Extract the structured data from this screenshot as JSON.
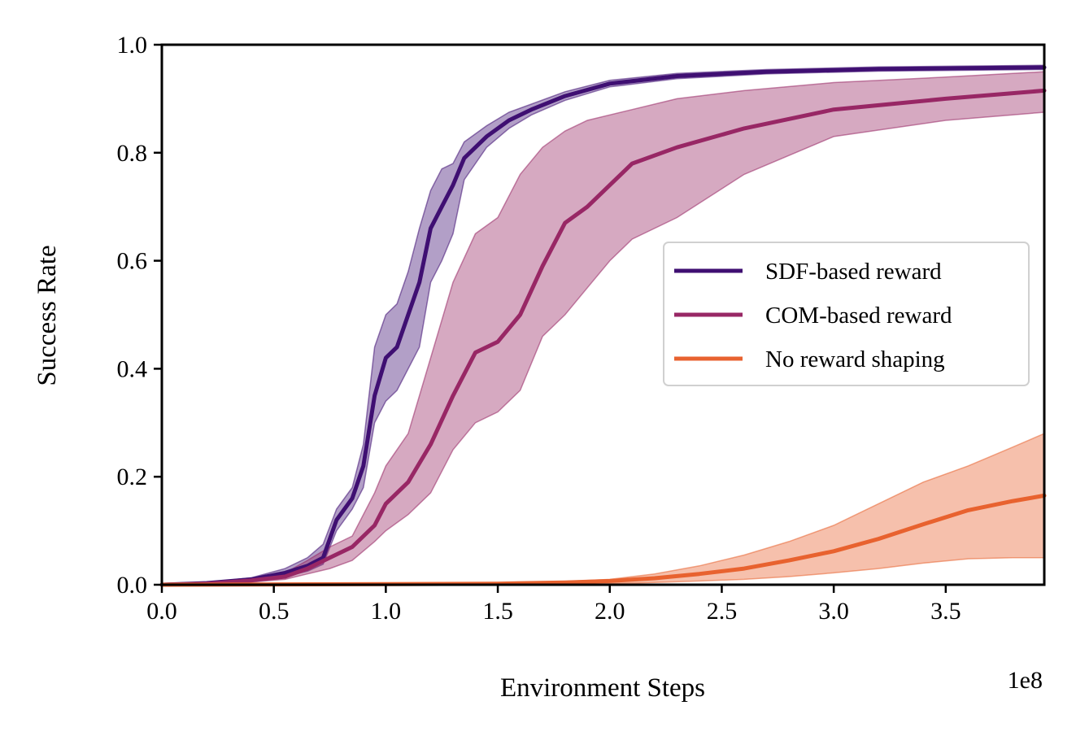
{
  "chart_data": {
    "type": "line",
    "xlabel": "Environment Steps",
    "ylabel": "Success Rate",
    "x_offset_label": "1e8",
    "xlim": [
      0,
      3.94
    ],
    "ylim": [
      0,
      1.0
    ],
    "x_ticks": [
      "0.0",
      "0.5",
      "1.0",
      "1.5",
      "2.0",
      "2.5",
      "3.0",
      "3.5"
    ],
    "y_ticks": [
      "0.0",
      "0.2",
      "0.4",
      "0.6",
      "0.8",
      "1.0"
    ],
    "grid": false,
    "legend_position": "center-right",
    "series": [
      {
        "name": "SDF-based reward",
        "color": "#3f0f72",
        "points": [
          [
            0.0,
            0.0,
            0.0,
            0.0
          ],
          [
            0.2,
            0.003,
            0.002,
            0.004
          ],
          [
            0.4,
            0.01,
            0.007,
            0.013
          ],
          [
            0.55,
            0.022,
            0.015,
            0.03
          ],
          [
            0.65,
            0.035,
            0.025,
            0.05
          ],
          [
            0.72,
            0.05,
            0.038,
            0.075
          ],
          [
            0.78,
            0.12,
            0.1,
            0.14
          ],
          [
            0.85,
            0.16,
            0.14,
            0.18
          ],
          [
            0.9,
            0.22,
            0.18,
            0.26
          ],
          [
            0.95,
            0.35,
            0.3,
            0.44
          ],
          [
            1.0,
            0.42,
            0.34,
            0.5
          ],
          [
            1.05,
            0.44,
            0.36,
            0.52
          ],
          [
            1.1,
            0.5,
            0.4,
            0.58
          ],
          [
            1.15,
            0.56,
            0.44,
            0.66
          ],
          [
            1.2,
            0.66,
            0.56,
            0.73
          ],
          [
            1.25,
            0.7,
            0.6,
            0.77
          ],
          [
            1.3,
            0.74,
            0.65,
            0.78
          ],
          [
            1.35,
            0.79,
            0.75,
            0.82
          ],
          [
            1.45,
            0.83,
            0.81,
            0.85
          ],
          [
            1.55,
            0.86,
            0.845,
            0.875
          ],
          [
            1.65,
            0.88,
            0.87,
            0.89
          ],
          [
            1.8,
            0.905,
            0.897,
            0.913
          ],
          [
            2.0,
            0.928,
            0.922,
            0.934
          ],
          [
            2.3,
            0.942,
            0.937,
            0.947
          ],
          [
            2.7,
            0.95,
            0.946,
            0.954
          ],
          [
            3.2,
            0.955,
            0.951,
            0.959
          ],
          [
            3.94,
            0.958,
            0.954,
            0.962
          ]
        ]
      },
      {
        "name": "COM-based reward",
        "color": "#982765",
        "points": [
          [
            0.0,
            0.0,
            0.0,
            0.0
          ],
          [
            0.2,
            0.002,
            0.001,
            0.003
          ],
          [
            0.4,
            0.008,
            0.005,
            0.011
          ],
          [
            0.55,
            0.015,
            0.01,
            0.022
          ],
          [
            0.65,
            0.03,
            0.02,
            0.045
          ],
          [
            0.75,
            0.05,
            0.03,
            0.07
          ],
          [
            0.85,
            0.07,
            0.045,
            0.09
          ],
          [
            0.95,
            0.11,
            0.08,
            0.17
          ],
          [
            1.0,
            0.15,
            0.1,
            0.22
          ],
          [
            1.1,
            0.19,
            0.13,
            0.28
          ],
          [
            1.2,
            0.26,
            0.17,
            0.42
          ],
          [
            1.3,
            0.35,
            0.25,
            0.56
          ],
          [
            1.4,
            0.43,
            0.3,
            0.65
          ],
          [
            1.5,
            0.45,
            0.32,
            0.68
          ],
          [
            1.6,
            0.5,
            0.36,
            0.76
          ],
          [
            1.7,
            0.59,
            0.46,
            0.81
          ],
          [
            1.8,
            0.67,
            0.5,
            0.84
          ],
          [
            1.9,
            0.7,
            0.55,
            0.86
          ],
          [
            2.0,
            0.74,
            0.6,
            0.87
          ],
          [
            2.1,
            0.78,
            0.64,
            0.88
          ],
          [
            2.3,
            0.81,
            0.68,
            0.9
          ],
          [
            2.6,
            0.845,
            0.76,
            0.915
          ],
          [
            3.0,
            0.88,
            0.83,
            0.93
          ],
          [
            3.5,
            0.9,
            0.86,
            0.94
          ],
          [
            3.94,
            0.915,
            0.875,
            0.95
          ]
        ]
      },
      {
        "name": "No reward shaping",
        "color": "#e8622f",
        "points": [
          [
            0.0,
            0.0,
            0.0,
            0.0
          ],
          [
            1.0,
            0.001,
            0.0,
            0.002
          ],
          [
            1.5,
            0.002,
            0.0,
            0.004
          ],
          [
            1.8,
            0.004,
            0.001,
            0.006
          ],
          [
            2.0,
            0.007,
            0.002,
            0.01
          ],
          [
            2.2,
            0.012,
            0.004,
            0.02
          ],
          [
            2.4,
            0.02,
            0.007,
            0.035
          ],
          [
            2.6,
            0.03,
            0.01,
            0.055
          ],
          [
            2.8,
            0.045,
            0.015,
            0.08
          ],
          [
            3.0,
            0.062,
            0.022,
            0.11
          ],
          [
            3.2,
            0.085,
            0.03,
            0.15
          ],
          [
            3.4,
            0.112,
            0.04,
            0.19
          ],
          [
            3.6,
            0.138,
            0.048,
            0.22
          ],
          [
            3.8,
            0.155,
            0.05,
            0.255
          ],
          [
            3.94,
            0.165,
            0.05,
            0.28
          ]
        ]
      }
    ]
  }
}
